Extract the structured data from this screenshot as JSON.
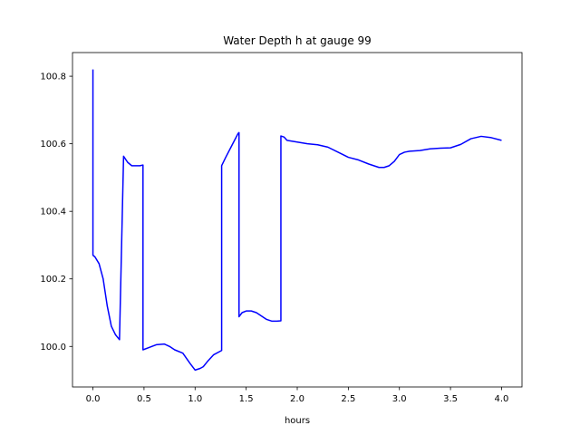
{
  "chart_data": {
    "type": "line",
    "title": "Water Depth h at gauge 99",
    "xlabel": "hours",
    "ylabel": "",
    "xlim": [
      -0.2,
      4.2
    ],
    "ylim": [
      99.88,
      100.87
    ],
    "xticks": [
      0.0,
      0.5,
      1.0,
      1.5,
      2.0,
      2.5,
      3.0,
      3.5,
      4.0
    ],
    "xtick_labels": [
      "0.0",
      "0.5",
      "1.0",
      "1.5",
      "2.0",
      "2.5",
      "3.0",
      "3.5",
      "4.0"
    ],
    "yticks": [
      100.0,
      100.2,
      100.4,
      100.6,
      100.8
    ],
    "ytick_labels": [
      "100.0",
      "100.2",
      "100.4",
      "100.6",
      "100.8"
    ],
    "grid": false,
    "series": [
      {
        "color": "#0000ff",
        "x": [
          0.0,
          0.0,
          0.02,
          0.06,
          0.1,
          0.14,
          0.18,
          0.22,
          0.26,
          0.3,
          0.3,
          0.34,
          0.38,
          0.42,
          0.46,
          0.49,
          0.49,
          0.55,
          0.62,
          0.7,
          0.75,
          0.8,
          0.88,
          0.95,
          1.0,
          1.05,
          1.08,
          1.12,
          1.18,
          1.26,
          1.26,
          1.3,
          1.36,
          1.42,
          1.43,
          1.43,
          1.46,
          1.5,
          1.55,
          1.6,
          1.65,
          1.7,
          1.75,
          1.8,
          1.84,
          1.84,
          1.87,
          1.9,
          2.0,
          2.1,
          2.2,
          2.3,
          2.4,
          2.5,
          2.6,
          2.7,
          2.8,
          2.85,
          2.9,
          2.95,
          3.0,
          3.05,
          3.1,
          3.2,
          3.3,
          3.4,
          3.5,
          3.6,
          3.7,
          3.8,
          3.9,
          4.0
        ],
        "y": [
          100.82,
          100.27,
          100.265,
          100.245,
          100.2,
          100.12,
          100.06,
          100.035,
          100.02,
          100.563,
          100.563,
          100.545,
          100.535,
          100.535,
          100.535,
          100.537,
          99.99,
          99.997,
          100.005,
          100.007,
          100.0,
          99.99,
          99.98,
          99.95,
          99.93,
          99.935,
          99.94,
          99.955,
          99.975,
          99.988,
          100.535,
          100.56,
          100.595,
          100.63,
          100.633,
          100.088,
          100.1,
          100.105,
          100.105,
          100.1,
          100.09,
          100.08,
          100.075,
          100.075,
          100.076,
          100.623,
          100.62,
          100.61,
          100.605,
          100.6,
          100.597,
          100.59,
          100.575,
          100.56,
          100.552,
          100.54,
          100.53,
          100.53,
          100.535,
          100.548,
          100.568,
          100.575,
          100.578,
          100.58,
          100.585,
          100.587,
          100.588,
          100.598,
          100.615,
          100.622,
          100.618,
          100.61
        ]
      }
    ]
  }
}
